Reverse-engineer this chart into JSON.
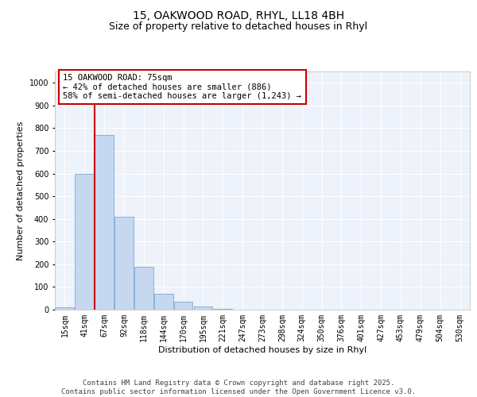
{
  "title_line1": "15, OAKWOOD ROAD, RHYL, LL18 4BH",
  "title_line2": "Size of property relative to detached houses in Rhyl",
  "xlabel": "Distribution of detached houses by size in Rhyl",
  "ylabel": "Number of detached properties",
  "categories": [
    "15sqm",
    "41sqm",
    "67sqm",
    "92sqm",
    "118sqm",
    "144sqm",
    "170sqm",
    "195sqm",
    "221sqm",
    "247sqm",
    "273sqm",
    "298sqm",
    "324sqm",
    "350sqm",
    "376sqm",
    "401sqm",
    "427sqm",
    "453sqm",
    "479sqm",
    "504sqm",
    "530sqm"
  ],
  "values": [
    10,
    600,
    770,
    410,
    190,
    70,
    35,
    15,
    5,
    0,
    0,
    0,
    0,
    0,
    0,
    0,
    0,
    0,
    0,
    0,
    0
  ],
  "bar_color": "#c5d8f0",
  "bar_edgecolor": "#7aaad4",
  "vline_x": 2.0,
  "vline_color": "#cc0000",
  "annotation_box_text": "15 OAKWOOD ROAD: 75sqm\n← 42% of detached houses are smaller (886)\n58% of semi-detached houses are larger (1,243) →",
  "annotation_box_facecolor": "white",
  "annotation_box_edgecolor": "#cc0000",
  "ylim": [
    0,
    1050
  ],
  "yticks": [
    0,
    100,
    200,
    300,
    400,
    500,
    600,
    700,
    800,
    900,
    1000
  ],
  "background_color": "#eef2fa",
  "footer_text": "Contains HM Land Registry data © Crown copyright and database right 2025.\nContains public sector information licensed under the Open Government Licence v3.0.",
  "title_fontsize": 10,
  "subtitle_fontsize": 9,
  "xlabel_fontsize": 8,
  "ylabel_fontsize": 8,
  "tick_fontsize": 7,
  "annotation_fontsize": 7.5,
  "footer_fontsize": 6.5
}
